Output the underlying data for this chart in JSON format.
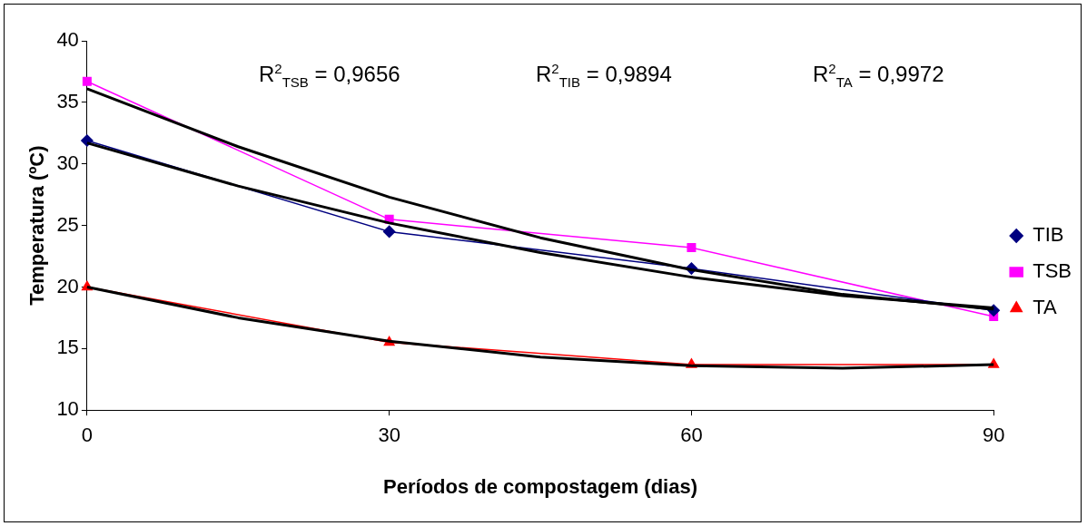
{
  "chart_data": {
    "type": "line",
    "xlabel": "Períodos de compostagem (dias)",
    "ylabel": "Temperatura (ºC)",
    "x": [
      0,
      30,
      60,
      90
    ],
    "xlim": [
      0,
      90
    ],
    "xticks": [
      0,
      30,
      60,
      90
    ],
    "ylim": [
      10,
      40
    ],
    "yticks": [
      10,
      15,
      20,
      25,
      30,
      35,
      40
    ],
    "grid": false,
    "legend": "right",
    "series": [
      {
        "name": "TIB",
        "color": "#000080",
        "marker": "diamond",
        "values": [
          31.9,
          24.5,
          21.5,
          18.1
        ]
      },
      {
        "name": "TSB",
        "color": "#ff00ff",
        "marker": "square",
        "values": [
          36.7,
          25.5,
          23.2,
          17.6
        ]
      },
      {
        "name": "TA",
        "color": "#ff0000",
        "marker": "triangle",
        "values": [
          20.0,
          15.5,
          13.7,
          13.7
        ]
      },
      {
        "color": "#000000",
        "marker": "none",
        "x": [
          0,
          15,
          30,
          45,
          60,
          75,
          90
        ],
        "values": [
          31.7,
          28.2,
          25.2,
          22.8,
          20.8,
          19.3,
          18.3
        ]
      },
      {
        "color": "#000000",
        "marker": "none",
        "x": [
          0,
          15,
          30,
          45,
          60,
          75,
          90
        ],
        "values": [
          36.1,
          31.4,
          27.3,
          24.0,
          21.4,
          19.4,
          18.2
        ]
      },
      {
        "color": "#000000",
        "marker": "none",
        "x": [
          0,
          15,
          30,
          45,
          60,
          75,
          90
        ],
        "values": [
          20.0,
          17.5,
          15.6,
          14.3,
          13.6,
          13.4,
          13.7
        ]
      }
    ],
    "annotations": [
      "R$^{2}$$_{TSB}$ = 0,9656",
      "R$^{2}$$_{TIB}$ = 0,9894",
      "R$^{2}$$_{TA}$ = 0,9972"
    ]
  }
}
